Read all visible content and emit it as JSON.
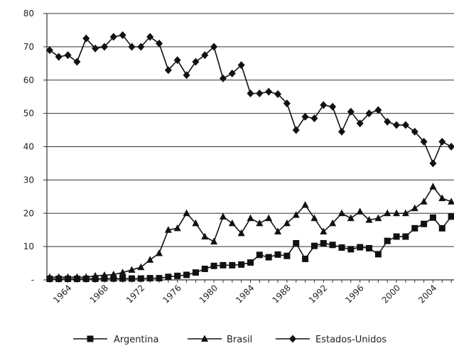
{
  "chart_data": {
    "type": "line",
    "x": [
      1962,
      1963,
      1964,
      1965,
      1966,
      1967,
      1968,
      1969,
      1970,
      1971,
      1972,
      1973,
      1974,
      1975,
      1976,
      1977,
      1978,
      1979,
      1980,
      1981,
      1982,
      1983,
      1984,
      1985,
      1986,
      1987,
      1988,
      1989,
      1990,
      1991,
      1992,
      1993,
      1994,
      1995,
      1996,
      1997,
      1998,
      1999,
      2000,
      2001,
      2002,
      2003,
      2004,
      2005,
      2006
    ],
    "x_tick_labels": [
      "1964",
      "1968",
      "1972",
      "1976",
      "1980",
      "1984",
      "1988",
      "1992",
      "1996",
      "2000",
      "2004"
    ],
    "x_tick_values": [
      1964,
      1968,
      1972,
      1976,
      1980,
      1984,
      1988,
      1992,
      1996,
      2000,
      2004
    ],
    "ylim": [
      0,
      80
    ],
    "y_tick_labels": [
      "-",
      "10",
      "20",
      "30",
      "40",
      "50",
      "60",
      "70",
      "80"
    ],
    "y_tick_values": [
      0,
      10,
      20,
      30,
      40,
      50,
      60,
      70,
      80
    ],
    "grid": true,
    "legend_position": "bottom",
    "series": [
      {
        "name": "Argentina",
        "marker": "square",
        "values": [
          0.3,
          0.3,
          0.3,
          0.3,
          0.3,
          0.3,
          0.4,
          0.4,
          0.4,
          0.4,
          0.4,
          0.5,
          0.5,
          0.9,
          1.2,
          1.5,
          2.2,
          3.3,
          4.2,
          4.4,
          4.4,
          4.6,
          5.2,
          7.5,
          6.8,
          7.6,
          7.2,
          11,
          6.3,
          10.2,
          11,
          10.5,
          9.7,
          9.2,
          9.8,
          9.5,
          7.7,
          11.7,
          13,
          13,
          15.5,
          16.8,
          18.7,
          15.5,
          19
        ]
      },
      {
        "name": "Brasil",
        "marker": "triangle",
        "values": [
          0.8,
          0.8,
          0.8,
          0.8,
          0.8,
          1.2,
          1.4,
          1.6,
          2.2,
          3,
          3.8,
          6,
          8,
          15,
          15.5,
          20,
          17,
          13,
          11.5,
          19,
          17,
          14,
          18.5,
          17,
          18.5,
          14.5,
          17,
          19.5,
          22.5,
          18.5,
          14.5,
          17,
          20,
          18.5,
          20.5,
          18,
          18.5,
          20,
          20,
          20,
          21.5,
          23.5,
          28,
          24.5,
          23.5
        ]
      },
      {
        "name": "Estados-Unidos",
        "marker": "diamond",
        "values": [
          69,
          67,
          67.5,
          65.5,
          72.5,
          69.5,
          70,
          73,
          73.5,
          70,
          70,
          73,
          71,
          63,
          66,
          61.5,
          65.5,
          67.5,
          70,
          60.5,
          62,
          64.5,
          56,
          56,
          56.5,
          55.8,
          53,
          45,
          49,
          48.5,
          52.5,
          52,
          44.5,
          50.5,
          47,
          50,
          51,
          47.5,
          46.5,
          46.5,
          44.5,
          41.5,
          35,
          41.5,
          40
        ]
      }
    ]
  }
}
